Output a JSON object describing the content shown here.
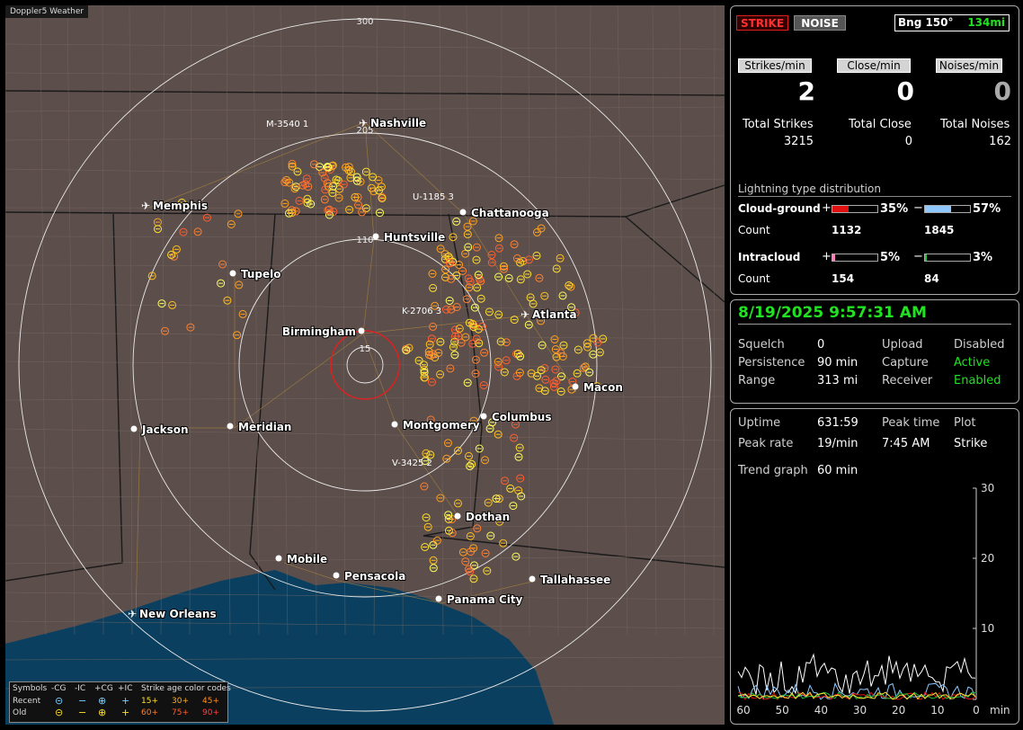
{
  "app": {
    "brand": "Doppler5 Weather"
  },
  "map": {
    "cities": [
      "Nashville",
      "Memphis",
      "Chattanooga",
      "Huntsville",
      "Tupelo",
      "Atlanta",
      "Birmingham",
      "Macon",
      "Jackson",
      "Meridian",
      "Montgomery",
      "Columbus",
      "Dothan",
      "Mobile",
      "Pensacola",
      "Tallahassee",
      "Panama City",
      "New Orleans"
    ],
    "ring_labels": {
      "r300": "300",
      "r205": "205",
      "r110": "110",
      "r15": "15"
    },
    "cell_labels": {
      "m": "M-3540",
      "m_n": "1",
      "u": "U-1185",
      "u_n": "3",
      "k": "K-2706",
      "k_n": "3",
      "v": "V-3425",
      "v_n": "2"
    }
  },
  "legend": {
    "symbols": "Symbols",
    "neg_cg": "-CG",
    "neg_ic": "-IC",
    "pos_cg": "+CG",
    "pos_ic": "+IC",
    "age_title": "Strike age color codes",
    "recent": "Recent",
    "old": "Old",
    "a15": "15+",
    "a30": "30+",
    "a45": "45+",
    "a60": "60+",
    "a75": "75+",
    "a90": "90+",
    "g_neg_cg": "⊝",
    "g_neg_ic": "−",
    "g_pos_cg": "⊕",
    "g_pos_ic": "+"
  },
  "strikes": {
    "strike_tab": "STRIKE",
    "noise_tab": "NOISE",
    "bearing": "Bng 150°",
    "distance": "134mi",
    "strikes_rate_label": "Strikes/min",
    "close_rate_label": "Close/min",
    "noise_rate_label": "Noises/min",
    "strikes_rate": "2",
    "close_rate": "0",
    "noise_rate": "0",
    "total_strikes_label": "Total Strikes",
    "total_close_label": "Total Close",
    "total_noises_label": "Total Noises",
    "total_strikes": "3215",
    "total_close": "0",
    "total_noises": "162"
  },
  "distribution": {
    "title": "Lightning type distribution",
    "cg_label": "Cloud-ground",
    "ic_label": "Intracloud",
    "count_label": "Count",
    "plus": "+",
    "minus": "−",
    "cg_pos_pct": "35%",
    "cg_neg_pct": "57%",
    "ic_pos_pct": "5%",
    "ic_neg_pct": "3%",
    "cg_pos_count": "1132",
    "cg_neg_count": "1845",
    "ic_pos_count": "154",
    "ic_neg_count": "84",
    "cg_pos_frac": 0.35,
    "cg_neg_frac": 0.57,
    "ic_pos_frac": 0.05,
    "ic_neg_frac": 0.03
  },
  "status": {
    "datetime": "8/19/2025 9:57:31 AM",
    "squelch_label": "Squelch",
    "squelch": "0",
    "upload_label": "Upload",
    "upload": "Disabled",
    "persistence_label": "Persistence",
    "persistence": "90 min",
    "capture_label": "Capture",
    "capture": "Active",
    "range_label": "Range",
    "range": "313 mi",
    "receiver_label": "Receiver",
    "receiver": "Enabled"
  },
  "trend": {
    "uptime_label": "Uptime",
    "uptime": "631:59",
    "peak_time_label": "Peak time",
    "peak_time": "7:45 AM",
    "plot_label": "Plot",
    "peak_rate_label": "Peak rate",
    "peak_rate": "19/min",
    "plot_value": "Strike",
    "trend_graph_label": "Trend graph",
    "trend_graph": "60 min",
    "y_ticks": [
      "30",
      "20",
      "10",
      "0"
    ],
    "x_ticks": [
      "60",
      "50",
      "40",
      "30",
      "20",
      "10",
      "0"
    ],
    "x_unit": "min"
  },
  "colors": {
    "accent_green": "#22e022",
    "strike_red": "#e01010",
    "neg_cg_blue": "#8fc8ff",
    "ic_pink": "#ff7fbf",
    "ic_green": "#20c040"
  }
}
